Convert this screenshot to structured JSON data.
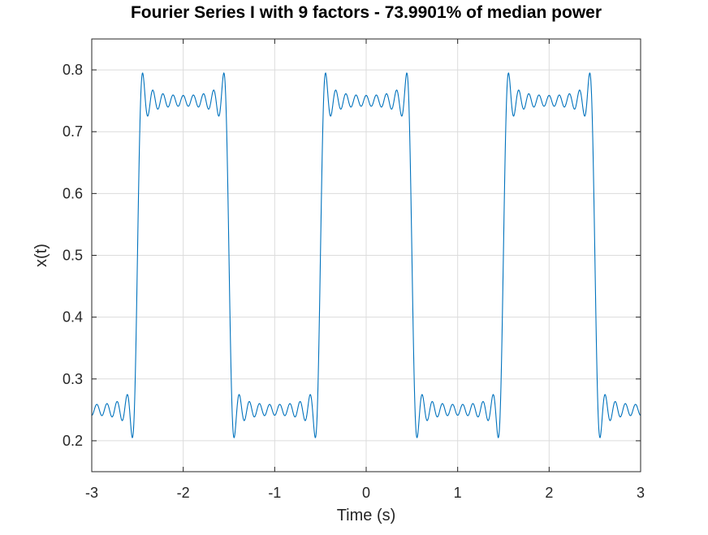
{
  "chart_data": {
    "type": "line",
    "title": "Fourier Series I with 9 factors - 73.9901% of median power",
    "xlabel": "Time (s)",
    "ylabel": "x(t)",
    "xlim": [
      -3,
      3
    ],
    "ylim": [
      0.15,
      0.85
    ],
    "xticks": [
      -3,
      -2,
      -1,
      0,
      1,
      2,
      3
    ],
    "yticks": [
      0.2,
      0.3,
      0.4,
      0.5,
      0.6,
      0.7,
      0.8
    ],
    "xtick_labels": [
      "-3",
      "-2",
      "-1",
      "0",
      "1",
      "2",
      "3"
    ],
    "ytick_labels": [
      "0.2",
      "0.3",
      "0.4",
      "0.5",
      "0.6",
      "0.7",
      "0.8"
    ],
    "grid": true,
    "series": [
      {
        "color": "#0072bd",
        "description": "Fourier series approximation of a square wave with period 2 s, mean 0.5, amplitude 0.25, high between t = -0.5 and t = 0.5 (mod 2), using odd harmonics 1 through 17 (9 factors)",
        "x": [
          -3,
          -2.9,
          -2.8,
          -2.7,
          -2.6,
          -2.5,
          -2.4,
          -2.3,
          -2.2,
          -2.1,
          -2,
          -1.9,
          -1.8,
          -1.7,
          -1.6,
          -1.5,
          -1.4,
          -1.3,
          -1.2,
          -1.1,
          -1,
          -0.9,
          -0.8,
          -0.7,
          -0.6,
          -0.5,
          -0.4,
          -0.3,
          -0.2,
          -0.1,
          0,
          0.1,
          0.2,
          0.3,
          0.4,
          0.5,
          0.6,
          0.7,
          0.8,
          0.9,
          1,
          1.1,
          1.2,
          1.3,
          1.4,
          1.5,
          1.6,
          1.7,
          1.8,
          1.9,
          2,
          2.1,
          2.2,
          2.3,
          2.4,
          2.5,
          2.6,
          2.7,
          2.8,
          2.9,
          3
        ],
        "y": [
          0.235,
          0.264,
          0.234,
          0.274,
          0.206,
          0.5,
          0.794,
          0.726,
          0.766,
          0.736,
          0.765,
          0.736,
          0.766,
          0.726,
          0.794,
          0.5,
          0.206,
          0.274,
          0.234,
          0.264,
          0.235,
          0.264,
          0.234,
          0.274,
          0.206,
          0.5,
          0.794,
          0.726,
          0.766,
          0.736,
          0.765,
          0.736,
          0.766,
          0.726,
          0.794,
          0.5,
          0.206,
          0.274,
          0.234,
          0.264,
          0.235,
          0.264,
          0.234,
          0.274,
          0.206,
          0.5,
          0.794,
          0.726,
          0.766,
          0.736,
          0.765,
          0.736,
          0.766,
          0.726,
          0.794,
          0.5,
          0.206,
          0.274,
          0.234,
          0.264,
          0.235
        ]
      }
    ]
  }
}
